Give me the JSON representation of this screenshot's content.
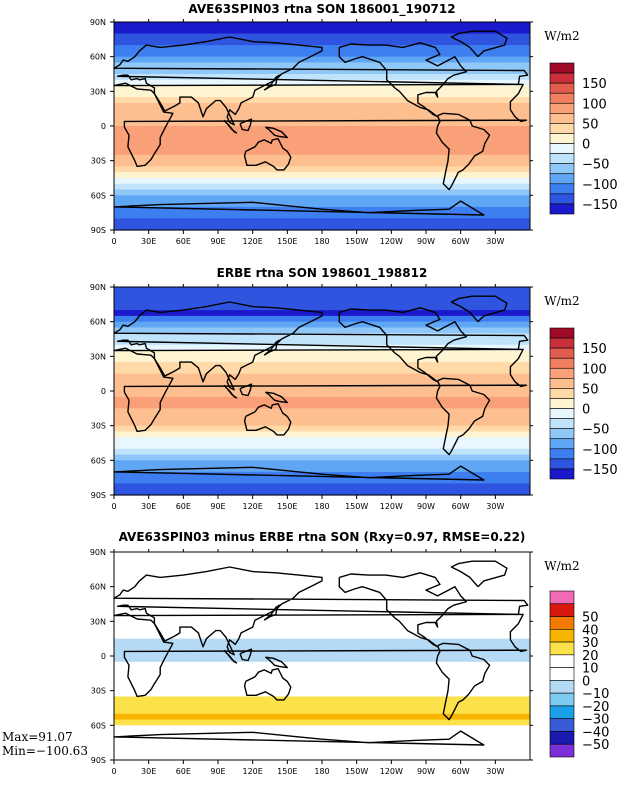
{
  "chart_data": [
    {
      "type": "heatmap",
      "title": "AVE63SPIN03 rtna SON 186001_190712",
      "x_tick_labels": [
        "0",
        "30E",
        "60E",
        "90E",
        "120E",
        "150E",
        "180",
        "150W",
        "120W",
        "90W",
        "60W",
        "30W"
      ],
      "y_tick_labels": [
        "90N",
        "60N",
        "30N",
        "0",
        "30S",
        "60S",
        "90S"
      ],
      "colorbar": {
        "unit": "W/m2",
        "levels": [
          -150,
          -100,
          -50,
          0,
          50,
          100,
          150
        ],
        "colors": [
          "#1a1acc",
          "#2e54e0",
          "#3d7ff0",
          "#5fa6f4",
          "#8fc8f8",
          "#bfe3fb",
          "#e8f6fd",
          "#fff4d2",
          "#ffd9a8",
          "#fdbf8f",
          "#f9a079",
          "#f07f62",
          "#e35d4e",
          "#c9303b",
          "#9e0a28"
        ]
      },
      "zonal_means": [
        [
          90,
          -165
        ],
        [
          75,
          -140
        ],
        [
          60,
          -95
        ],
        [
          45,
          -45
        ],
        [
          30,
          15
        ],
        [
          15,
          60
        ],
        [
          0,
          75
        ],
        [
          -15,
          90
        ],
        [
          -30,
          60
        ],
        [
          -45,
          5
        ],
        [
          -60,
          -70
        ],
        [
          -75,
          -120
        ],
        [
          -90,
          -150
        ]
      ]
    },
    {
      "type": "heatmap",
      "title": "ERBE rtna SON 198601_198812",
      "x_tick_labels": [
        "0",
        "30E",
        "60E",
        "90E",
        "120E",
        "150E",
        "180",
        "150W",
        "120W",
        "90W",
        "60W",
        "30W"
      ],
      "y_tick_labels": [
        "90N",
        "60N",
        "30N",
        "0",
        "30S",
        "60S",
        "90S"
      ],
      "colorbar": {
        "unit": "W/m2",
        "levels": [
          -150,
          -100,
          -50,
          0,
          50,
          100,
          150
        ],
        "colors": [
          "#1a1acc",
          "#2e54e0",
          "#3d7ff0",
          "#5fa6f4",
          "#8fc8f8",
          "#bfe3fb",
          "#e8f6fd",
          "#fff4d2",
          "#ffd9a8",
          "#fdbf8f",
          "#f9a079",
          "#f07f62",
          "#e35d4e",
          "#c9303b",
          "#9e0a28"
        ]
      },
      "zonal_means": [
        [
          70,
          -170
        ],
        [
          65,
          -150
        ],
        [
          60,
          -95
        ],
        [
          45,
          -40
        ],
        [
          30,
          10
        ],
        [
          15,
          55
        ],
        [
          0,
          70
        ],
        [
          -15,
          80
        ],
        [
          -30,
          45
        ],
        [
          -45,
          -10
        ],
        [
          -60,
          -75
        ],
        [
          -75,
          -115
        ],
        [
          -90,
          -140
        ]
      ]
    },
    {
      "type": "heatmap",
      "title": "AVE63SPIN03 minus ERBE rtna SON (Rxy=0.97, RMSE=0.22)",
      "x_tick_labels": [
        "0",
        "30E",
        "60E",
        "90E",
        "120E",
        "150E",
        "180",
        "150W",
        "120W",
        "90W",
        "60W",
        "30W"
      ],
      "y_tick_labels": [
        "90N",
        "60N",
        "30N",
        "0",
        "30S",
        "60S",
        "90S"
      ],
      "colorbar": {
        "unit": "W/m2",
        "levels": [
          -50,
          -40,
          -30,
          -20,
          -10,
          0,
          10,
          20,
          30,
          40,
          50
        ],
        "colors": [
          "#7b2fd6",
          "#1a1ab0",
          "#3a5bd6",
          "#1aa0e8",
          "#7ecbf2",
          "#b5daf5",
          "#ffffff",
          "#ffffff",
          "#fbe24b",
          "#f7b500",
          "#f27a00",
          "#d9180e",
          "#f06ab4"
        ]
      },
      "zonal_means": [
        [
          90,
          0
        ],
        [
          60,
          5
        ],
        [
          30,
          5
        ],
        [
          0,
          -5
        ],
        [
          -30,
          15
        ],
        [
          -45,
          25
        ],
        [
          -55,
          35
        ],
        [
          -65,
          10
        ],
        [
          -75,
          5
        ],
        [
          -90,
          0
        ]
      ],
      "stats": {
        "max": "Max=91.07",
        "min": "Min=−100.63"
      }
    }
  ]
}
